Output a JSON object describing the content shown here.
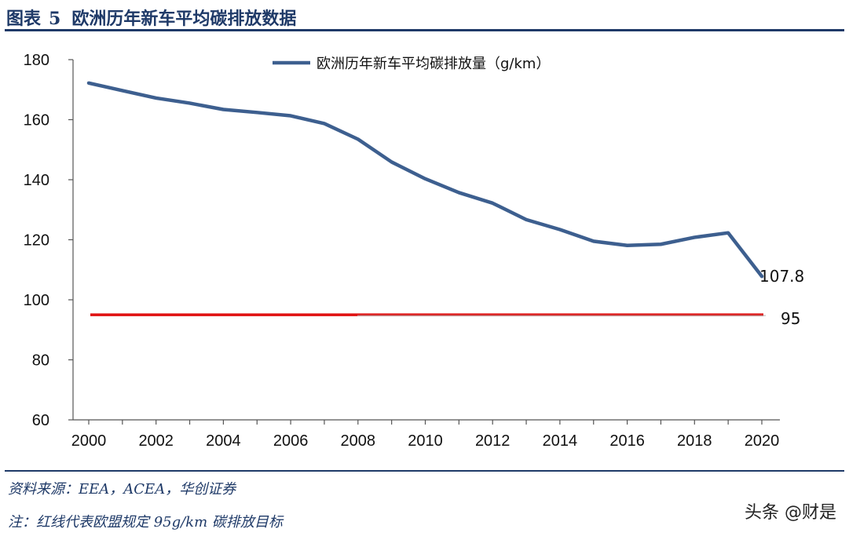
{
  "figure": {
    "number_label": "图表",
    "number": "5",
    "title": "欧洲历年新车平均碳排放数据"
  },
  "notes": {
    "source": "资料来源：EEA，ACEA，华创证券",
    "note": "注：红线代表欧盟规定 95g/km 碳排放目标"
  },
  "watermark": "头条 @财是",
  "colors": {
    "series": "#3d5f8f",
    "target": "#e01010",
    "frame": "#1f3a68"
  },
  "chart_data": {
    "type": "line",
    "title": "",
    "xlabel": "",
    "ylabel": "",
    "x": [
      2000,
      2001,
      2002,
      2003,
      2004,
      2005,
      2006,
      2007,
      2008,
      2009,
      2010,
      2011,
      2012,
      2013,
      2014,
      2015,
      2016,
      2017,
      2018,
      2019,
      2020
    ],
    "series": [
      {
        "name": "欧洲历年新车平均碳排放量（g/km）",
        "values": [
          172.2,
          169.7,
          167.2,
          165.5,
          163.4,
          162.4,
          161.3,
          158.7,
          153.5,
          145.9,
          140.3,
          135.7,
          132.2,
          126.7,
          123.4,
          119.5,
          118.1,
          118.5,
          120.8,
          122.3,
          107.8
        ]
      }
    ],
    "target_line": {
      "value": 95,
      "label": "95"
    },
    "end_label": "107.8",
    "xlim": [
      2000,
      2020
    ],
    "ylim": [
      60,
      180
    ],
    "xticks": [
      "2000",
      "2002",
      "2004",
      "2006",
      "2008",
      "2010",
      "2012",
      "2014",
      "2016",
      "2018",
      "2020"
    ],
    "yticks": [
      "60",
      "80",
      "100",
      "120",
      "140",
      "160",
      "180"
    ],
    "grid": false,
    "legend_position": "top-center"
  }
}
